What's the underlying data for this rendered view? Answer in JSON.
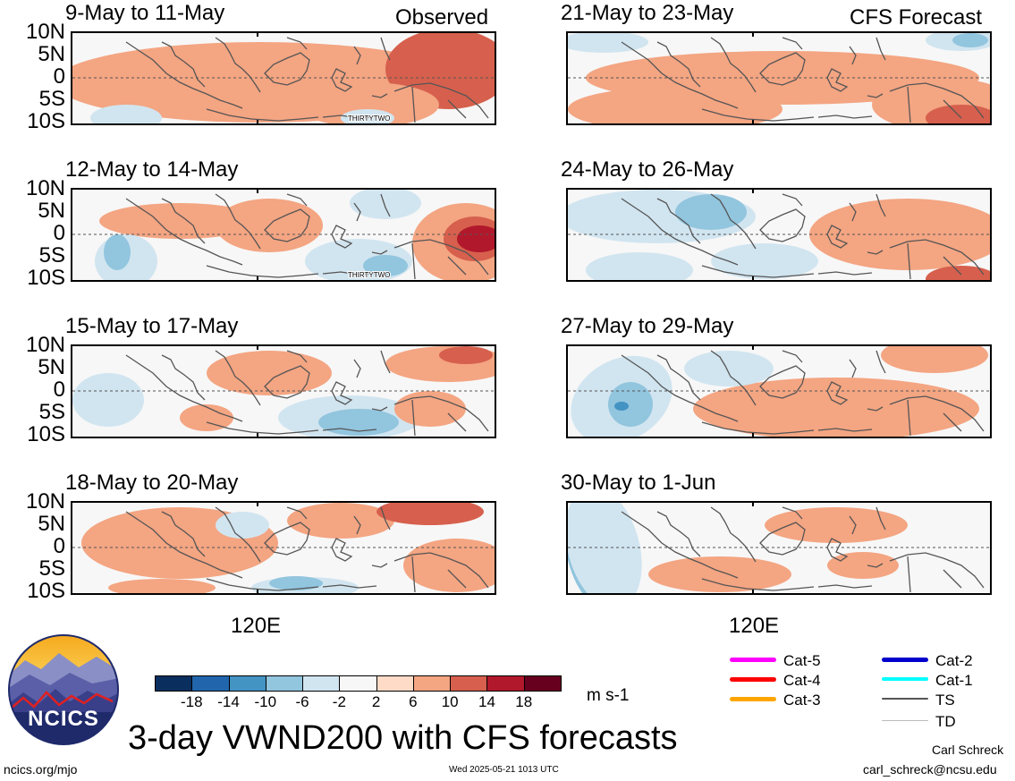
{
  "header": {
    "observed_label": "Observed",
    "forecast_label": "CFS Forecast"
  },
  "panels": [
    {
      "title": "9-May to 11-May",
      "column": "observed",
      "storm_label": "THIRTYTWO"
    },
    {
      "title": "12-May to 14-May",
      "column": "observed",
      "storm_label": "THIRTYTWO"
    },
    {
      "title": "15-May to 17-May",
      "column": "observed",
      "storm_label": ""
    },
    {
      "title": "18-May to 20-May",
      "column": "observed",
      "storm_label": ""
    },
    {
      "title": "21-May to 23-May",
      "column": "forecast",
      "storm_label": ""
    },
    {
      "title": "24-May to 26-May",
      "column": "forecast",
      "storm_label": ""
    },
    {
      "title": "27-May to 29-May",
      "column": "forecast",
      "storm_label": ""
    },
    {
      "title": "30-May to 1-Jun",
      "column": "forecast",
      "storm_label": ""
    }
  ],
  "axes": {
    "lat_labels": [
      "10N",
      "5N",
      "0",
      "5S",
      "10S"
    ],
    "lon_label": "120E"
  },
  "colorbar": {
    "labels": [
      "-18",
      "-14",
      "-10",
      "-6",
      "-2",
      "2",
      "6",
      "10",
      "14",
      "18"
    ],
    "colors": [
      "#0a2f5e",
      "#2166ac",
      "#4393c3",
      "#92c5de",
      "#d1e5f0",
      "#f7f7f7",
      "#fddbc7",
      "#f4a582",
      "#d6604d",
      "#b2182b",
      "#67001f"
    ],
    "units": "m s-1"
  },
  "legend": [
    {
      "label": "Cat-5",
      "color": "#ff00ff",
      "width": 5
    },
    {
      "label": "Cat-4",
      "color": "#ff0000",
      "width": 5
    },
    {
      "label": "Cat-3",
      "color": "#ffa500",
      "width": 5
    },
    {
      "label": "Cat-2",
      "color": "#0000cc",
      "width": 5
    },
    {
      "label": "Cat-1",
      "color": "#00ffff",
      "width": 4
    },
    {
      "label": "TS",
      "color": "#555555",
      "width": 2
    },
    {
      "label": "TD",
      "color": "#bbbbbb",
      "width": 1
    }
  ],
  "title": "3-day VWND200 with CFS forecasts",
  "logo_text": "NCICS",
  "footer": {
    "url": "ncics.org/mjo",
    "timestamp": "Wed 2025-05-21 1013 UTC",
    "author": "Carl Schreck",
    "email": "carl_schreck@ncsu.edu"
  }
}
